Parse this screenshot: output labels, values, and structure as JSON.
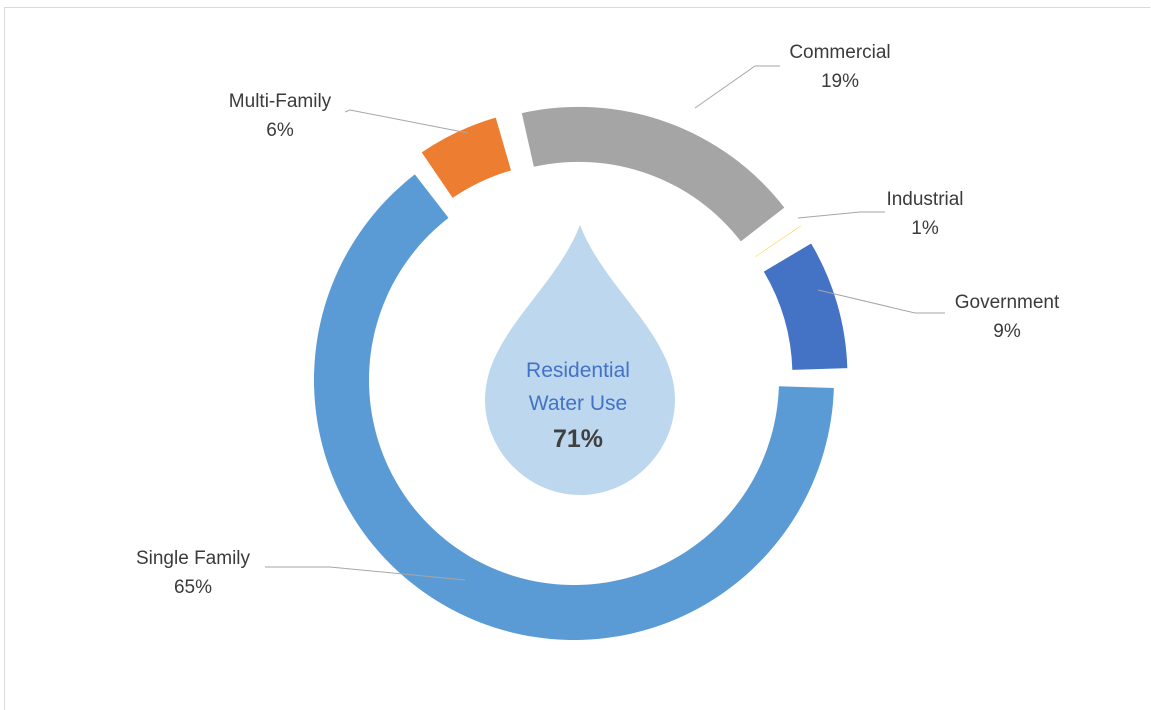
{
  "chart_data": {
    "type": "pie",
    "style": "donut-exploded",
    "categories": [
      "Single Family",
      "Multi-Family",
      "Commercial",
      "Industrial",
      "Government"
    ],
    "values": [
      65,
      6,
      19,
      1,
      9
    ],
    "value_labels": [
      "65%",
      "6%",
      "19%",
      "1%",
      "9%"
    ],
    "colors": [
      "#5b9bd5",
      "#ed7d31",
      "#a5a5a5",
      "#ffc000",
      "#4472c4"
    ],
    "center": {
      "label_line1": "Residential",
      "label_line2": "Water Use",
      "value": "71%",
      "drop_color": "#bdd7ee"
    },
    "legend": "none"
  }
}
